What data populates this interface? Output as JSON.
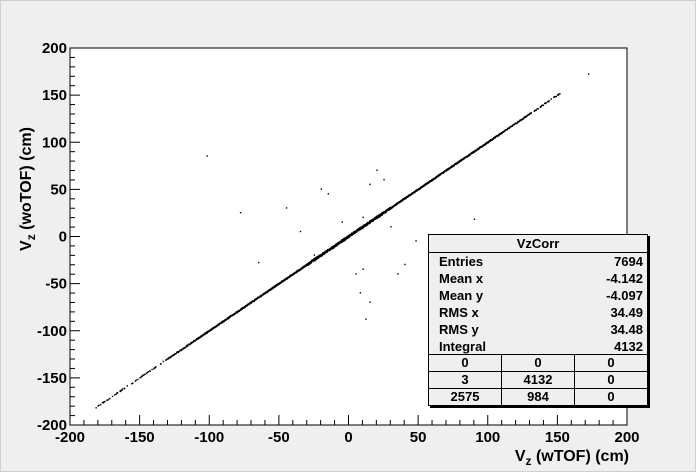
{
  "chart_data": {
    "type": "scatter",
    "xlabel": "V_z (wTOF) (cm)",
    "xlabel_main": "V",
    "xlabel_sub": "z",
    "xlabel_rest": " (wTOF) (cm)",
    "ylabel": "V_z (woTOF) (cm)",
    "ylabel_main": "V",
    "ylabel_sub": "z",
    "ylabel_rest": " (woTOF) (cm)",
    "xlim": [
      -200,
      200
    ],
    "ylim": [
      -200,
      200
    ],
    "xticks": [
      -200,
      -150,
      -100,
      -50,
      0,
      50,
      100,
      150,
      200
    ],
    "yticks": [
      -200,
      -150,
      -100,
      -50,
      0,
      50,
      100,
      150,
      200
    ],
    "grid": false,
    "diagonal_band": {
      "x_start": -182,
      "x_end": 152,
      "slope": 1.0,
      "intercept": 0
    },
    "outliers": [
      {
        "x": -102,
        "y": 85
      },
      {
        "x": -78,
        "y": 25
      },
      {
        "x": -45,
        "y": 30
      },
      {
        "x": -20,
        "y": 50
      },
      {
        "x": -15,
        "y": 45
      },
      {
        "x": -5,
        "y": 15
      },
      {
        "x": 10,
        "y": -35
      },
      {
        "x": 5,
        "y": -40
      },
      {
        "x": 8,
        "y": -60
      },
      {
        "x": 15,
        "y": -70
      },
      {
        "x": 12,
        "y": -88
      },
      {
        "x": 25,
        "y": 60
      },
      {
        "x": 35,
        "y": -40
      },
      {
        "x": 40,
        "y": -30
      },
      {
        "x": 10,
        "y": 20
      },
      {
        "x": -35,
        "y": 5
      },
      {
        "x": 30,
        "y": 10
      },
      {
        "x": 20,
        "y": 70
      },
      {
        "x": 90,
        "y": 18
      },
      {
        "x": -65,
        "y": -28
      },
      {
        "x": 172,
        "y": 172
      },
      {
        "x": 15,
        "y": 55
      },
      {
        "x": 48,
        "y": -5
      },
      {
        "x": -25,
        "y": -20
      }
    ]
  },
  "stats": {
    "title": "VzCorr",
    "rows": [
      {
        "label": "Entries",
        "value": "7694"
      },
      {
        "label": "Mean x",
        "value": "-4.142"
      },
      {
        "label": "Mean y",
        "value": "-4.097"
      },
      {
        "label": "RMS x",
        "value": "34.49"
      },
      {
        "label": "RMS y",
        "value": "34.48"
      },
      {
        "label": "Integral",
        "value": "4132"
      }
    ],
    "grid": [
      [
        "0",
        "0",
        "0"
      ],
      [
        "3",
        "4132",
        "0"
      ],
      [
        "2575",
        "984",
        "0"
      ]
    ]
  }
}
